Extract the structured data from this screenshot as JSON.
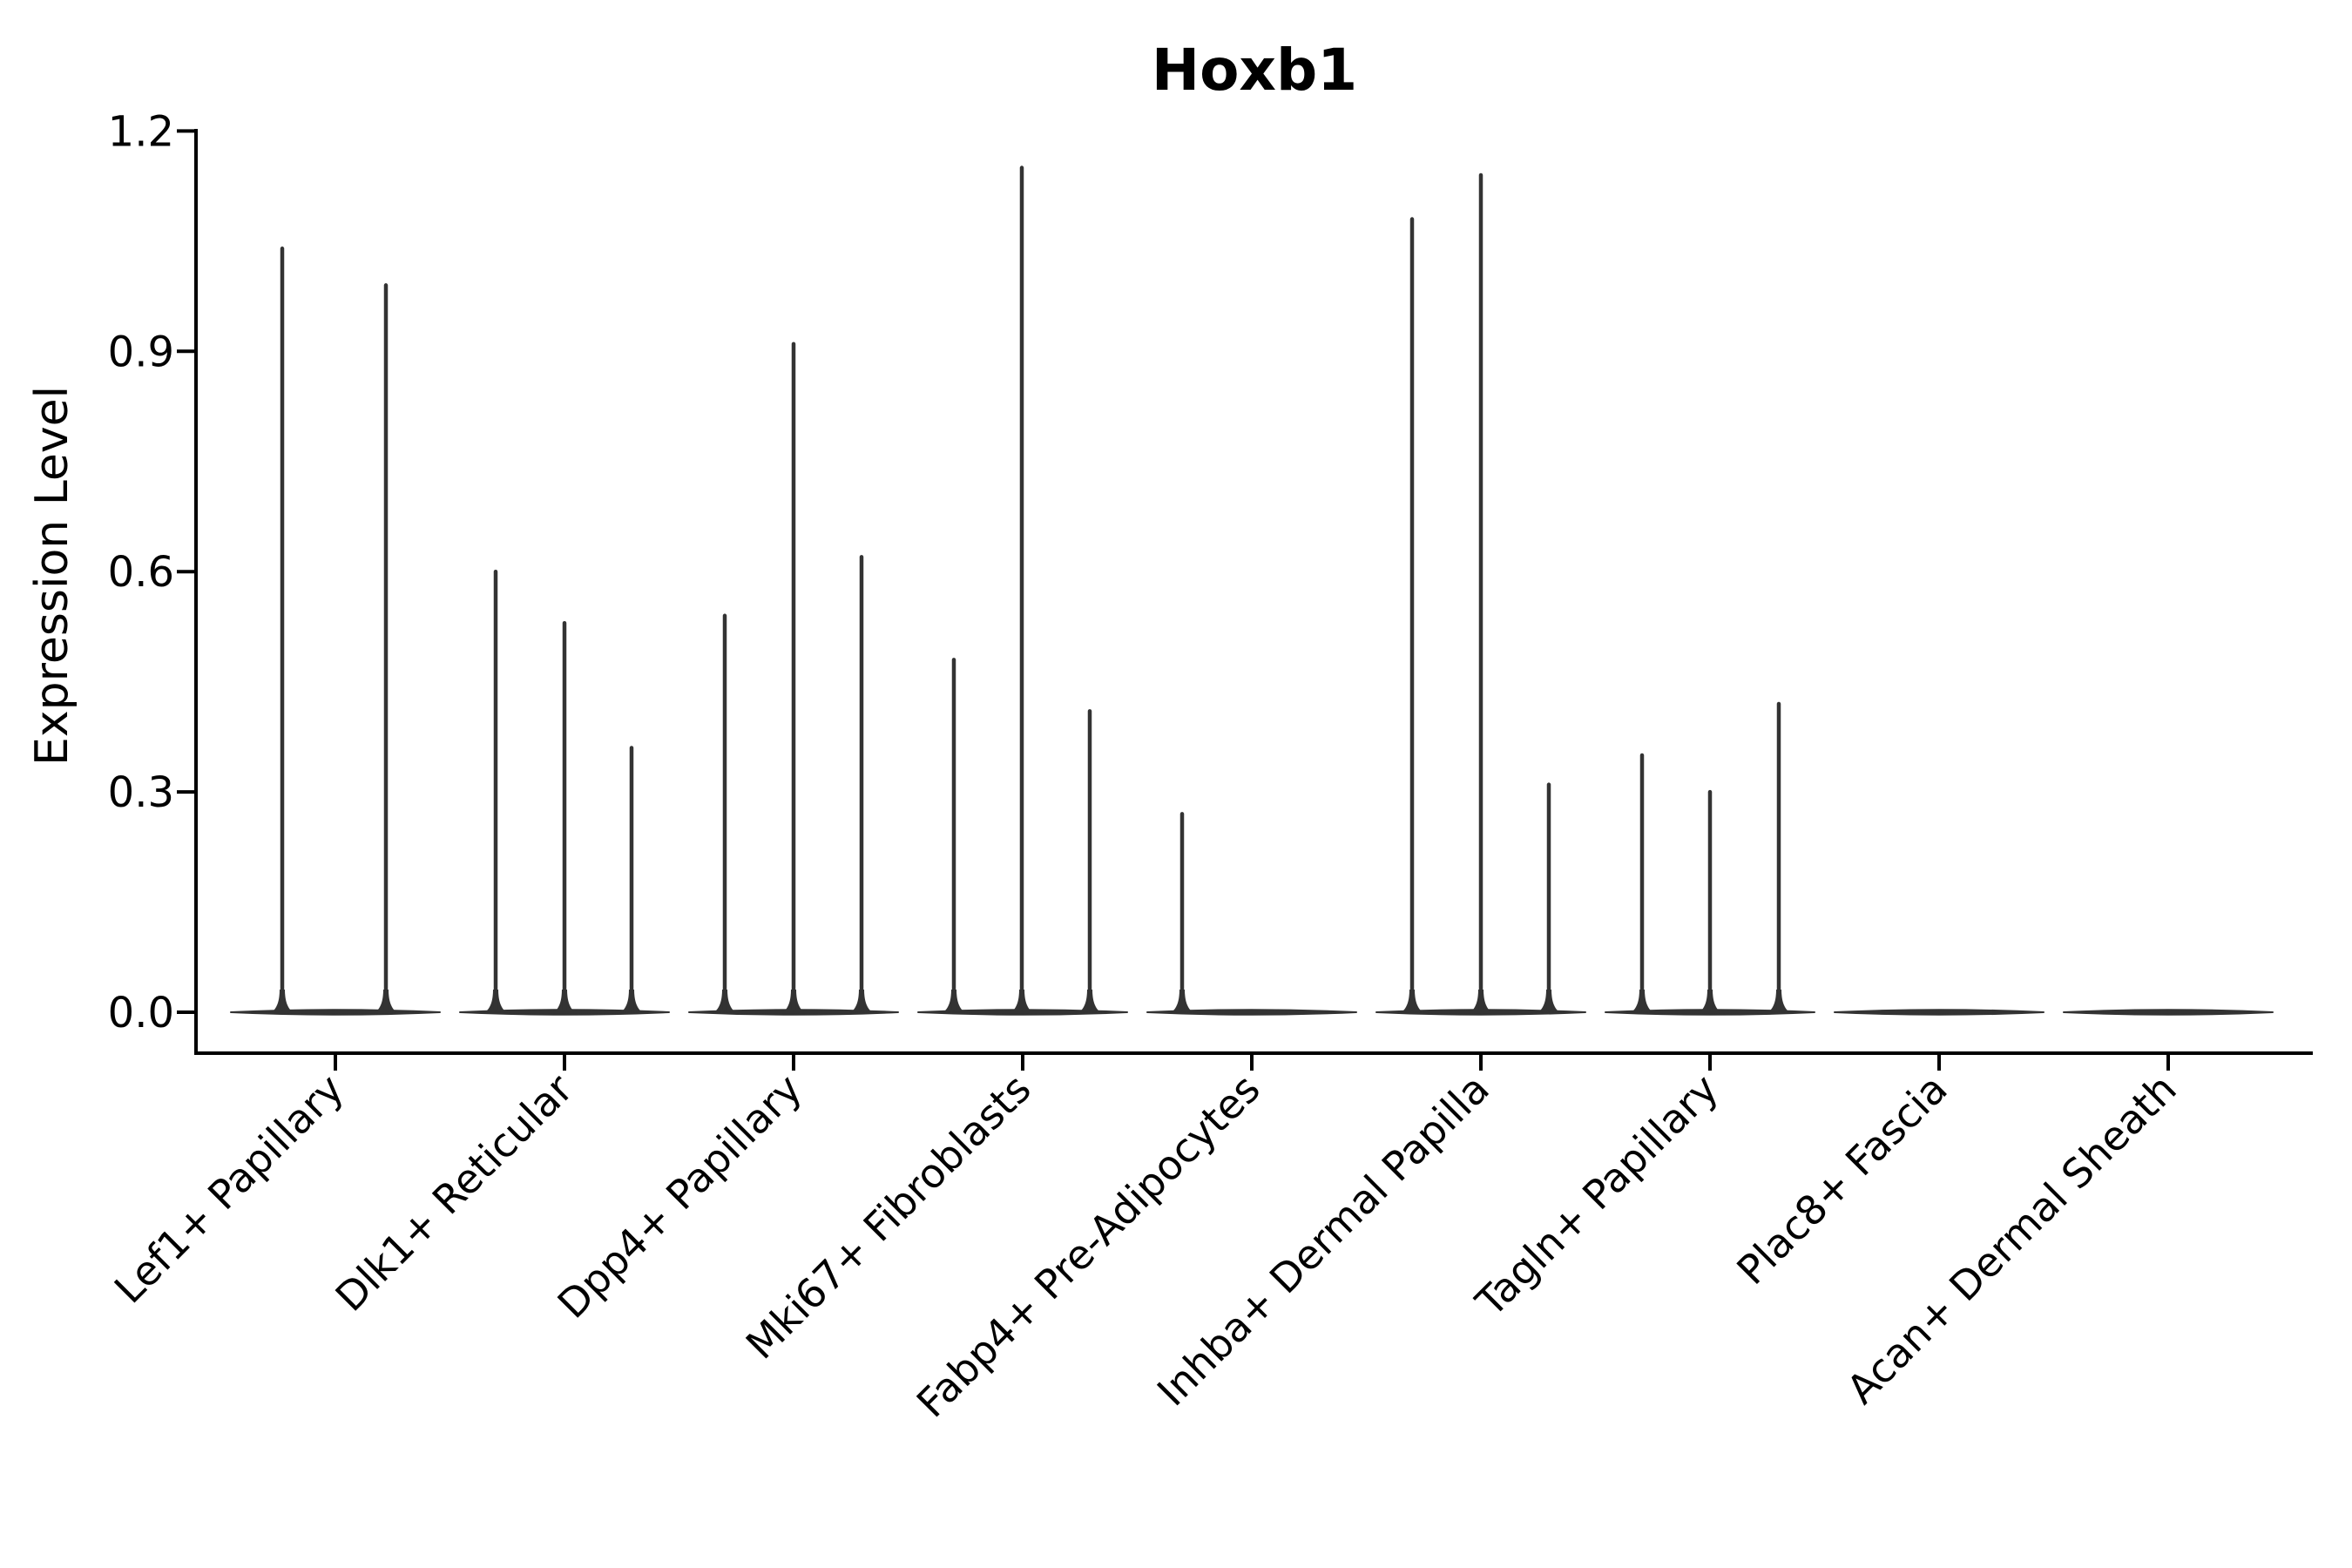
{
  "chart_data": {
    "type": "violin",
    "title": "Hoxb1",
    "ylabel": "Expression Level",
    "xlabel": "",
    "ylim": [
      0.0,
      1.2
    ],
    "yticks": [
      0.0,
      0.3,
      0.6,
      0.9,
      1.2
    ],
    "ytick_labels": [
      "0.0",
      "0.3",
      "0.6",
      "0.9",
      "1.2"
    ],
    "grid": false,
    "legend": null,
    "categories": [
      "Lef1+ Papillary",
      "Dlk1+ Reticular",
      "Dpp4+ Papillary",
      "Mki67+ Fibroblasts",
      "Fabp4+ Pre-Adipocytes",
      "Inhba+ Dermal Papilla",
      "Tagln+ Papillary",
      "Plac8+ Fascia",
      "Acan+ Dermal Sheath"
    ],
    "series": [
      {
        "category": "Lef1+ Papillary",
        "baseline": 0.0,
        "violins": [
          {
            "offset": -61,
            "peak": 1.04
          },
          {
            "offset": 58,
            "peak": 0.99
          }
        ]
      },
      {
        "category": "Dlk1+ Reticular",
        "baseline": 0.0,
        "violins": [
          {
            "offset": -79,
            "peak": 0.6
          },
          {
            "offset": 0,
            "peak": 0.53
          },
          {
            "offset": 77,
            "peak": 0.36
          }
        ]
      },
      {
        "category": "Dpp4+ Papillary",
        "baseline": 0.0,
        "violins": [
          {
            "offset": -79,
            "peak": 0.54
          },
          {
            "offset": 0,
            "peak": 0.91
          },
          {
            "offset": 78,
            "peak": 0.62
          }
        ]
      },
      {
        "category": "Mki67+ Fibroblasts",
        "baseline": 0.0,
        "violins": [
          {
            "offset": -79,
            "peak": 0.48
          },
          {
            "offset": -1,
            "peak": 1.15
          },
          {
            "offset": 77,
            "peak": 0.41
          }
        ]
      },
      {
        "category": "Fabp4+ Pre-Adipocytes",
        "baseline": 0.0,
        "violins": [
          {
            "offset": -80,
            "peak": 0.27
          }
        ]
      },
      {
        "category": "Inhba+ Dermal Papilla",
        "baseline": 0.0,
        "violins": [
          {
            "offset": -79,
            "peak": 1.08
          },
          {
            "offset": 0,
            "peak": 1.14
          },
          {
            "offset": 78,
            "peak": 0.31
          }
        ]
      },
      {
        "category": "Tagln+ Papillary",
        "baseline": 0.0,
        "violins": [
          {
            "offset": -78,
            "peak": 0.35
          },
          {
            "offset": 0,
            "peak": 0.3
          },
          {
            "offset": 79,
            "peak": 0.42
          }
        ]
      },
      {
        "category": "Plac8+ Fascia",
        "baseline": 0.0,
        "violins": []
      },
      {
        "category": "Acan+ Dermal Sheath",
        "baseline": 0.0,
        "violins": []
      }
    ]
  },
  "colors": {
    "violin": "#333333",
    "axis": "#000000",
    "text": "#000000",
    "background": "#ffffff"
  }
}
